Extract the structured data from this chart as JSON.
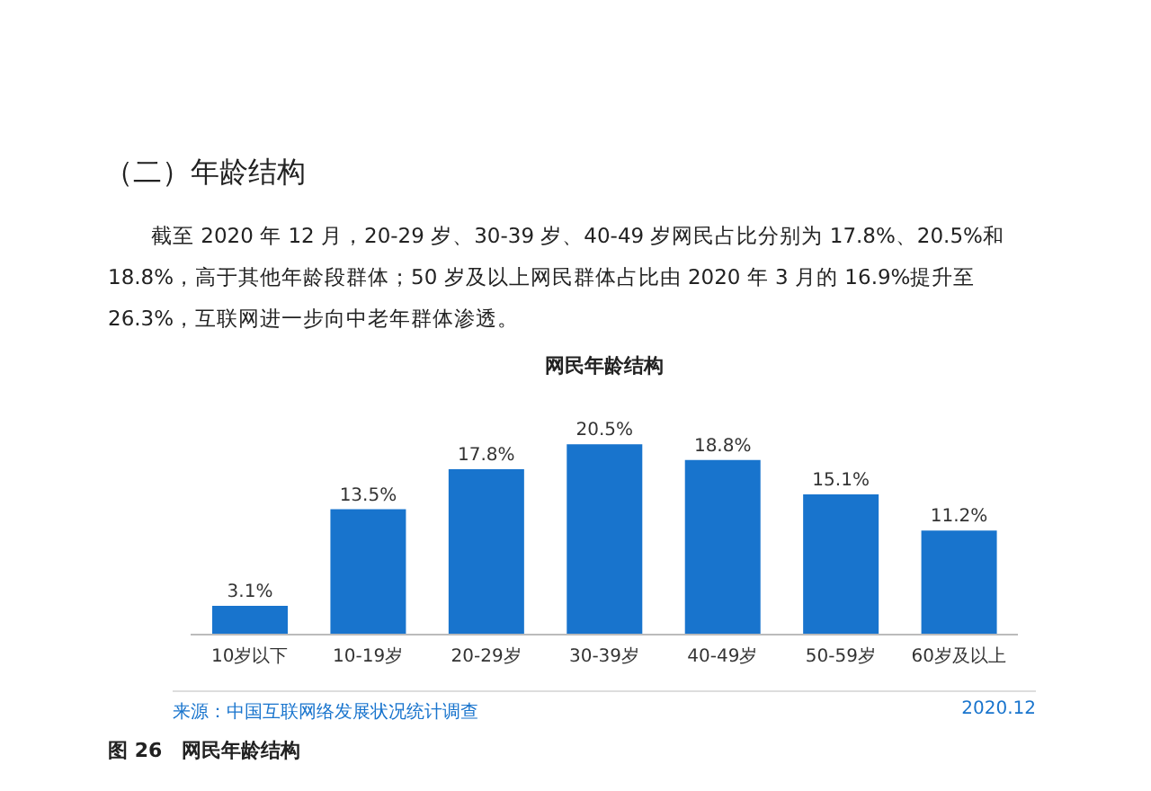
{
  "chart_data": {
    "type": "bar",
    "title": "网民年龄结构",
    "categories": [
      "10岁以下",
      "10-19岁",
      "20-29岁",
      "30-39岁",
      "40-49岁",
      "50-59岁",
      "60岁及以上"
    ],
    "values": [
      3.1,
      13.5,
      17.8,
      20.5,
      18.8,
      15.1,
      11.2
    ],
    "value_labels": [
      "3.1%",
      "13.5%",
      "17.8%",
      "20.5%",
      "18.8%",
      "15.1%",
      "11.2%"
    ],
    "color": "#1874cd",
    "tick_labels": "x",
    "grid": false,
    "annotations": [
      "（二）年龄结构",
      "截至 2020 年 12 月，20-29 岁、30-39 岁、40-49 岁网民占比分别为 17.8%、20.5%和 18.8%，高于其他年龄段群体；50 岁及以上网民群体占比由 2020 年 3 月的 16.9%提升至 26.3%，互联网进一步向中老年群体渗透。",
      "来源：中国互联网络发展状况统计调查",
      "2020.12",
      "图 26　网民年龄结构"
    ]
  }
}
